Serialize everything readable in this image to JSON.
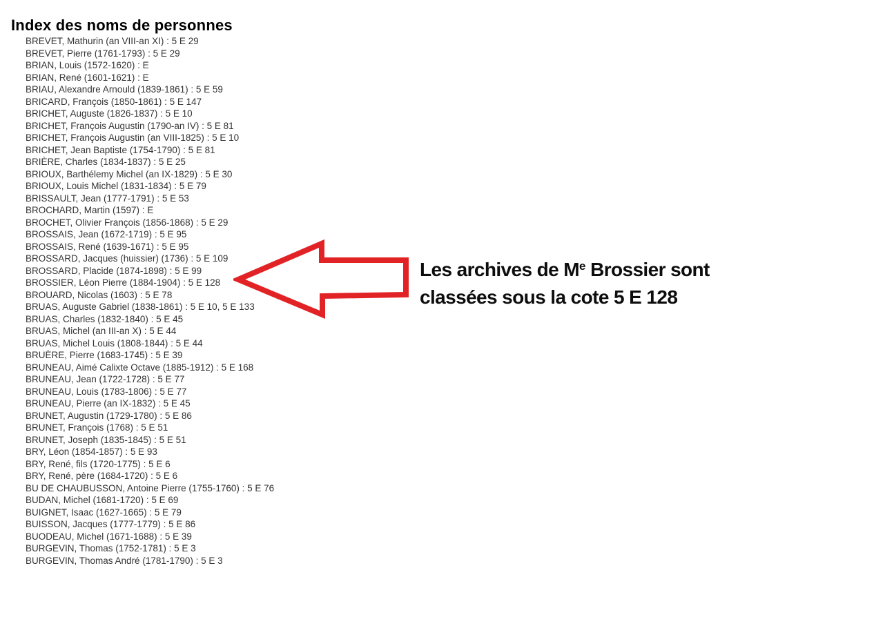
{
  "page": {
    "title": "Index des noms de personnes",
    "entries": [
      "BREVET, Mathurin (an VIII-an XI) : 5 E 29",
      "BREVET, Pierre (1761-1793) : 5 E 29",
      "BRIAN, Louis (1572-1620) : E",
      "BRIAN, René (1601-1621) : E",
      "BRIAU, Alexandre Arnould (1839-1861) : 5 E 59",
      "BRICARD, François (1850-1861) : 5 E 147",
      "BRICHET, Auguste (1826-1837) : 5 E 10",
      "BRICHET, François Augustin (1790-an IV) : 5 E 81",
      "BRICHET, François Augustin (an VIII-1825) : 5 E 10",
      "BRICHET, Jean Baptiste (1754-1790) : 5 E 81",
      "BRIÈRE, Charles (1834-1837) : 5 E 25",
      "BRIOUX, Barthélemy Michel (an IX-1829) : 5 E 30",
      "BRIOUX, Louis Michel (1831-1834) : 5 E 79",
      "BRISSAULT, Jean (1777-1791) : 5 E 53",
      "BROCHARD, Martin (1597) : E",
      "BROCHET, Olivier François (1856-1868) : 5 E 29",
      "BROSSAIS, Jean (1672-1719) : 5 E 95",
      "BROSSAIS, René (1639-1671) : 5 E 95",
      "BROSSARD, Jacques (huissier) (1736) : 5 E 109",
      "BROSSARD, Placide (1874-1898) : 5 E 99",
      "BROSSIER, Léon Pierre (1884-1904) : 5 E 128",
      "BROUARD, Nicolas (1603) : 5 E 78",
      "BRUAS, Auguste Gabriel (1838-1861) : 5 E 10, 5 E 133",
      "BRUAS, Charles (1832-1840) : 5 E 45",
      "BRUAS, Michel (an III-an X) : 5 E 44",
      "BRUAS, Michel Louis (1808-1844) : 5 E 44",
      "BRUÈRE, Pierre (1683-1745) : 5 E 39",
      "BRUNEAU, Aimé Calixte Octave (1885-1912) : 5 E 168",
      "BRUNEAU, Jean (1722-1728) : 5 E 77",
      "BRUNEAU, Louis (1783-1806) : 5 E 77",
      "BRUNEAU, Pierre (an IX-1832) : 5 E 45",
      "BRUNET, Augustin (1729-1780) : 5 E 86",
      "BRUNET, François (1768) : 5 E 51",
      "BRUNET, Joseph (1835-1845) : 5 E 51",
      "BRY, Léon (1854-1857) : 5 E 93",
      "BRY, René, fils (1720-1775) : 5 E 6",
      "BRY, René, père (1684-1720) : 5 E 6",
      "BU DE CHAUBUSSON, Antoine Pierre (1755-1760) : 5 E 76",
      "BUDAN, Michel (1681-1720) : 5 E 69",
      "BUIGNET, Isaac (1627-1665) : 5 E 79",
      "BUISSON, Jacques (1777-1779) : 5 E 86",
      "BUODEAU, Michel (1671-1688) : 5 E 39",
      "BURGEVIN, Thomas (1752-1781) : 5 E 3",
      "BURGEVIN, Thomas André (1781-1790) : 5 E 3"
    ],
    "highlighted_entry": "BROSSIER, Léon Pierre (1884-1904) : 5 E 128",
    "annotation": {
      "line1_pre": "Les archives de M",
      "line1_sup": "e",
      "line1_post": " Brossier sont",
      "line2": "classées sous la cote 5 E 128"
    },
    "colors": {
      "arrow_red": "#e22326",
      "arrow_fill": "#ffffff",
      "title_text": "#000000",
      "list_text": "#333333",
      "annotation_text": "#0d0d0d",
      "background": "#ffffff"
    }
  }
}
